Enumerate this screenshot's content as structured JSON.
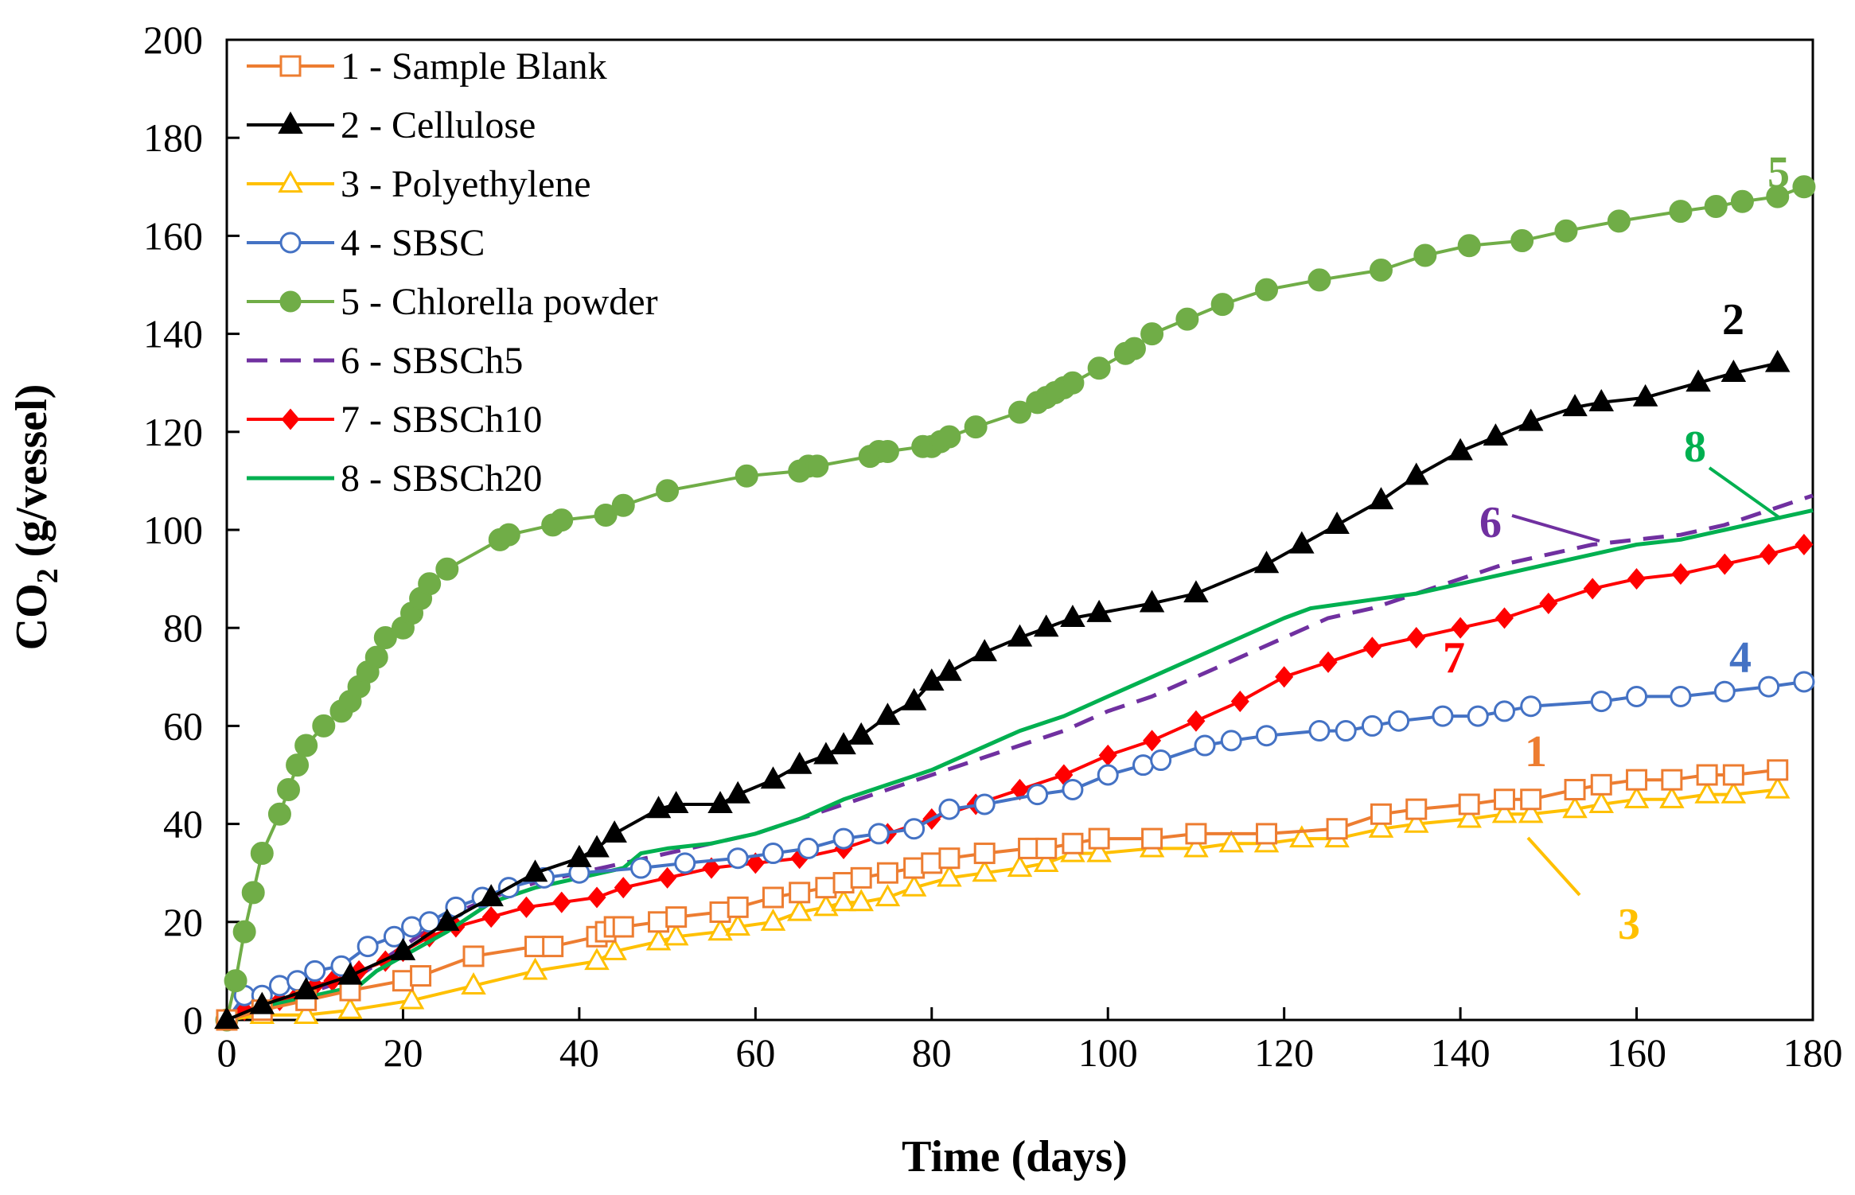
{
  "chart_data": {
    "type": "line",
    "xlabel": "Time (days)",
    "ylabel_main": "CO",
    "ylabel_sub": "2",
    "ylabel_rest": " (g/vessel)",
    "xlim": [
      0,
      180
    ],
    "ylim": [
      0,
      200
    ],
    "xticks": [
      0,
      20,
      40,
      60,
      80,
      100,
      120,
      140,
      160,
      180
    ],
    "yticks": [
      0,
      20,
      40,
      60,
      80,
      100,
      120,
      140,
      160,
      180,
      200
    ],
    "grid": false,
    "legend_position": "top-left",
    "series": [
      {
        "name": "1 - Sample Blank",
        "label": "1",
        "color": "#ED7D31",
        "marker": "square",
        "dash": "",
        "x": [
          0,
          4,
          9,
          14,
          20,
          22,
          28,
          35,
          37,
          42,
          43,
          44,
          45,
          49,
          51,
          56,
          58,
          62,
          65,
          68,
          70,
          72,
          75,
          78,
          80,
          82,
          86,
          91,
          93,
          96,
          99,
          105,
          110,
          118,
          126,
          131,
          135,
          141,
          145,
          148,
          153,
          156,
          160,
          164,
          168,
          171,
          176
        ],
        "y": [
          0,
          2,
          4,
          6,
          8,
          9,
          13,
          15,
          15,
          17,
          18,
          19,
          19,
          20,
          21,
          22,
          23,
          25,
          26,
          27,
          28,
          29,
          30,
          31,
          32,
          33,
          34,
          35,
          35,
          36,
          37,
          37,
          38,
          38,
          39,
          42,
          43,
          44,
          45,
          45,
          47,
          48,
          49,
          49,
          50,
          50,
          51
        ]
      },
      {
        "name": "2 - Cellulose",
        "label": "2",
        "color": "#000000",
        "marker": "triangle",
        "dash": "",
        "x": [
          0,
          4,
          9,
          14,
          20,
          25,
          30,
          35,
          40,
          42,
          44,
          49,
          51,
          56,
          58,
          62,
          65,
          68,
          70,
          72,
          75,
          78,
          80,
          82,
          86,
          90,
          93,
          96,
          99,
          105,
          110,
          118,
          122,
          126,
          131,
          135,
          140,
          144,
          148,
          153,
          156,
          161,
          167,
          171,
          176
        ],
        "y": [
          0,
          3,
          6,
          9,
          14,
          20,
          25,
          30,
          33,
          35,
          38,
          43,
          44,
          44,
          46,
          49,
          52,
          54,
          56,
          58,
          62,
          65,
          69,
          71,
          75,
          78,
          80,
          82,
          83,
          85,
          87,
          93,
          97,
          101,
          106,
          111,
          116,
          119,
          122,
          125,
          126,
          127,
          130,
          132,
          134
        ]
      },
      {
        "name": "3 - Polyethylene",
        "label": "3",
        "color": "#FFC000",
        "marker": "triangle-open",
        "dash": "",
        "x": [
          0,
          4,
          9,
          14,
          21,
          28,
          35,
          42,
          44,
          49,
          51,
          56,
          58,
          62,
          65,
          68,
          70,
          72,
          75,
          78,
          82,
          86,
          90,
          93,
          96,
          99,
          105,
          110,
          114,
          118,
          122,
          126,
          131,
          135,
          141,
          145,
          148,
          153,
          156,
          160,
          164,
          168,
          171,
          176
        ],
        "y": [
          0,
          1,
          1,
          2,
          4,
          7,
          10,
          12,
          14,
          16,
          17,
          18,
          19,
          20,
          22,
          23,
          24,
          24,
          25,
          27,
          29,
          30,
          31,
          32,
          34,
          34,
          35,
          35,
          36,
          36,
          37,
          37,
          39,
          40,
          41,
          42,
          42,
          43,
          44,
          45,
          45,
          46,
          46,
          47
        ]
      },
      {
        "name": "4 - SBSC",
        "label": "4",
        "color": "#4472C4",
        "marker": "circle-open",
        "dash": "",
        "x": [
          0,
          2,
          4,
          6,
          8,
          10,
          13,
          16,
          19,
          21,
          23,
          26,
          29,
          32,
          36,
          40,
          47,
          52,
          58,
          62,
          66,
          70,
          74,
          78,
          82,
          86,
          92,
          96,
          100,
          104,
          106,
          111,
          114,
          118,
          124,
          127,
          130,
          133,
          138,
          142,
          145,
          148,
          156,
          160,
          165,
          170,
          175,
          179
        ],
        "y": [
          0,
          5,
          5,
          7,
          8,
          10,
          11,
          15,
          17,
          19,
          20,
          23,
          25,
          27,
          29,
          30,
          31,
          32,
          33,
          34,
          35,
          37,
          38,
          39,
          43,
          44,
          46,
          47,
          50,
          52,
          53,
          56,
          57,
          58,
          59,
          59,
          60,
          61,
          62,
          62,
          63,
          64,
          65,
          66,
          66,
          67,
          68,
          69
        ]
      },
      {
        "name": "5 - Chlorella powder",
        "label": "5",
        "color": "#70AD47",
        "marker": "circle",
        "dash": "",
        "x": [
          0,
          1,
          2,
          3,
          4,
          6,
          7,
          8,
          9,
          11,
          13,
          14,
          15,
          16,
          17,
          18,
          20,
          21,
          22,
          23,
          25,
          31,
          32,
          37,
          38,
          43,
          45,
          50,
          59,
          65,
          66,
          67,
          73,
          74,
          75,
          79,
          80,
          81,
          82,
          85,
          90,
          92,
          93,
          94,
          95,
          96,
          99,
          102,
          103,
          105,
          109,
          113,
          118,
          124,
          131,
          136,
          141,
          147,
          152,
          158,
          165,
          169,
          172,
          176,
          179
        ],
        "y": [
          0,
          8,
          18,
          26,
          34,
          42,
          47,
          52,
          56,
          60,
          63,
          65,
          68,
          71,
          74,
          78,
          80,
          83,
          86,
          89,
          92,
          98,
          99,
          101,
          102,
          103,
          105,
          108,
          111,
          112,
          113,
          113,
          115,
          116,
          116,
          117,
          117,
          118,
          119,
          121,
          124,
          126,
          127,
          128,
          129,
          130,
          133,
          136,
          137,
          140,
          143,
          146,
          149,
          151,
          153,
          156,
          158,
          159,
          161,
          163,
          165,
          166,
          167,
          168,
          170
        ]
      },
      {
        "name": "6 - SBSCh5",
        "label": "6",
        "color": "#7030A0",
        "marker": "none",
        "dash": "26,16",
        "x": [
          0,
          5,
          10,
          15,
          20,
          25,
          30,
          35,
          40,
          45,
          50,
          55,
          60,
          65,
          70,
          75,
          80,
          85,
          90,
          95,
          100,
          105,
          110,
          115,
          120,
          125,
          130,
          135,
          140,
          145,
          150,
          155,
          160,
          165,
          170,
          175,
          180
        ],
        "y": [
          0,
          3,
          6,
          9,
          15,
          21,
          25,
          28,
          30,
          32,
          34,
          36,
          38,
          41,
          44,
          47,
          50,
          53,
          56,
          59,
          63,
          66,
          70,
          74,
          78,
          82,
          84,
          87,
          90,
          93,
          95,
          97,
          98,
          99,
          101,
          104,
          107
        ]
      },
      {
        "name": "7 - SBSCh10",
        "label": "7",
        "color": "#FF0000",
        "marker": "diamond",
        "dash": "",
        "x": [
          0,
          2,
          4,
          6,
          8,
          10,
          12,
          15,
          18,
          20,
          23,
          26,
          30,
          34,
          38,
          42,
          45,
          50,
          55,
          60,
          65,
          70,
          75,
          80,
          85,
          90,
          95,
          100,
          105,
          110,
          115,
          120,
          125,
          130,
          135,
          140,
          145,
          150,
          155,
          160,
          165,
          170,
          175,
          179
        ],
        "y": [
          0,
          2,
          3,
          4,
          5,
          7,
          8,
          10,
          12,
          14,
          17,
          19,
          21,
          23,
          24,
          25,
          27,
          29,
          31,
          32,
          33,
          35,
          38,
          41,
          44,
          47,
          50,
          54,
          57,
          61,
          65,
          70,
          73,
          76,
          78,
          80,
          82,
          85,
          88,
          90,
          91,
          93,
          95,
          97
        ]
      },
      {
        "name": "8 - SBSCh20",
        "label": "8",
        "color": "#00B050",
        "marker": "none",
        "dash": "",
        "x": [
          0,
          5,
          10,
          15,
          17,
          20,
          25,
          30,
          35,
          40,
          45,
          47,
          50,
          55,
          60,
          65,
          70,
          75,
          80,
          85,
          90,
          95,
          100,
          105,
          110,
          115,
          120,
          123,
          127,
          131,
          135,
          140,
          145,
          150,
          155,
          160,
          165,
          170,
          175,
          180
        ],
        "y": [
          0,
          3,
          5,
          7,
          10,
          13,
          18,
          24,
          27,
          29,
          31,
          34,
          35,
          36,
          38,
          41,
          45,
          48,
          51,
          55,
          59,
          62,
          66,
          70,
          74,
          78,
          82,
          84,
          85,
          86,
          87,
          89,
          91,
          93,
          95,
          97,
          98,
          100,
          102,
          104
        ]
      }
    ]
  }
}
